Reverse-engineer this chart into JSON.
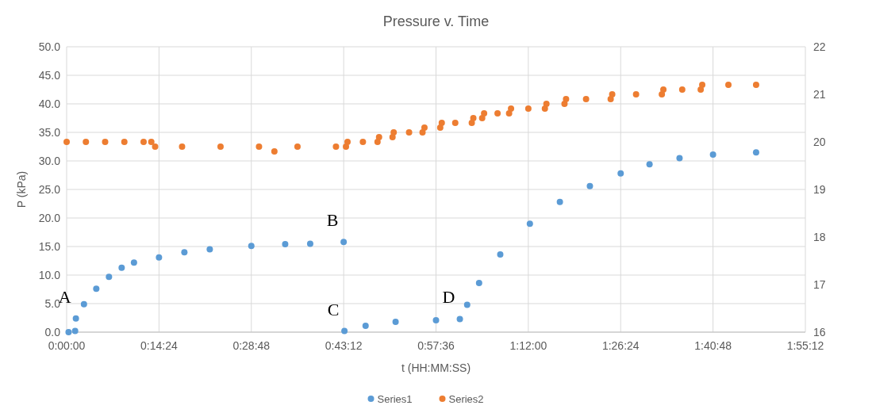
{
  "chart_data": {
    "type": "scatter",
    "title": "Pressure v. Time",
    "xlabel": "t (HH:MM:SS)",
    "ylabel": "P (kPa)",
    "xlim": [
      0,
      1.92
    ],
    "xticks": [
      {
        "value": 0,
        "label": "0:00:00"
      },
      {
        "value": 0.24,
        "label": "0:14:24"
      },
      {
        "value": 0.48,
        "label": "0:28:48"
      },
      {
        "value": 0.72,
        "label": "0:43:12"
      },
      {
        "value": 0.96,
        "label": "0:57:36"
      },
      {
        "value": 1.2,
        "label": "1:12:00"
      },
      {
        "value": 1.44,
        "label": "1:26:24"
      },
      {
        "value": 1.68,
        "label": "1:40:48"
      },
      {
        "value": 1.92,
        "label": "1:55:12"
      }
    ],
    "ylim": [
      0,
      50
    ],
    "yticks": [
      {
        "value": 0,
        "label": "0.0"
      },
      {
        "value": 5,
        "label": "5.0"
      },
      {
        "value": 10,
        "label": "10.0"
      },
      {
        "value": 15,
        "label": "15.0"
      },
      {
        "value": 20,
        "label": "20.0"
      },
      {
        "value": 25,
        "label": "25.0"
      },
      {
        "value": 30,
        "label": "30.0"
      },
      {
        "value": 35,
        "label": "35.0"
      },
      {
        "value": 40,
        "label": "40.0"
      },
      {
        "value": 45,
        "label": "45.0"
      },
      {
        "value": 50,
        "label": "50.0"
      }
    ],
    "y2lim": [
      16,
      22
    ],
    "y2ticks": [
      16,
      17,
      18,
      19,
      20,
      21,
      22
    ],
    "grid": true,
    "legend": "bottom",
    "marker": "circle",
    "annotations": [
      {
        "text": "A",
        "x": 0.024,
        "y": 2.4
      },
      {
        "text": "B",
        "x": 0.72,
        "y": 15.8
      },
      {
        "text": "C",
        "x": 0.722,
        "y": 0.2
      },
      {
        "text": "D",
        "x": 1.022,
        "y": 2.3
      }
    ],
    "series": [
      {
        "name": "Series1",
        "color": "#5b9bd5",
        "x": [
          0.005,
          0.022,
          0.024,
          0.045,
          0.077,
          0.11,
          0.143,
          0.175,
          0.24,
          0.306,
          0.372,
          0.48,
          0.568,
          0.633,
          0.72,
          0.722,
          0.777,
          0.855,
          0.96,
          1.022,
          1.041,
          1.072,
          1.127,
          1.204,
          1.282,
          1.36,
          1.44,
          1.515,
          1.593,
          1.68,
          1.792
        ],
        "values": [
          0,
          0.2,
          2.4,
          4.9,
          7.6,
          9.7,
          11.3,
          12.2,
          13.1,
          14.0,
          14.5,
          15.1,
          15.4,
          15.5,
          15.8,
          0.2,
          1.1,
          1.8,
          2.1,
          2.3,
          4.8,
          8.6,
          13.6,
          19.0,
          22.8,
          25.6,
          27.8,
          29.4,
          30.5,
          31.1,
          31.5
        ]
      },
      {
        "name": "Series2",
        "color": "#ed7d31",
        "axis": "y2",
        "x": [
          0,
          0.05,
          0.1,
          0.15,
          0.2,
          0.22,
          0.23,
          0.3,
          0.4,
          0.5,
          0.54,
          0.6,
          0.7,
          0.726,
          0.73,
          0.77,
          0.808,
          0.812,
          0.847,
          0.85,
          0.89,
          0.925,
          0.93,
          0.971,
          0.975,
          1.01,
          1.053,
          1.057,
          1.08,
          1.085,
          1.12,
          1.15,
          1.155,
          1.2,
          1.243,
          1.247,
          1.294,
          1.298,
          1.35,
          1.414,
          1.418,
          1.48,
          1.547,
          1.551,
          1.6,
          1.648,
          1.652,
          1.72,
          1.792
        ],
        "values": [
          20.0,
          20.0,
          20.0,
          20.0,
          20.0,
          20.0,
          19.9,
          19.9,
          19.9,
          19.9,
          19.8,
          19.9,
          19.9,
          19.9,
          20.0,
          20.0,
          20.0,
          20.1,
          20.1,
          20.2,
          20.2,
          20.2,
          20.3,
          20.3,
          20.4,
          20.4,
          20.4,
          20.5,
          20.5,
          20.6,
          20.6,
          20.6,
          20.7,
          20.7,
          20.7,
          20.8,
          20.8,
          20.9,
          20.9,
          20.9,
          21.0,
          21.0,
          21.0,
          21.1,
          21.1,
          21.1,
          21.2,
          21.2,
          21.2
        ]
      }
    ]
  }
}
